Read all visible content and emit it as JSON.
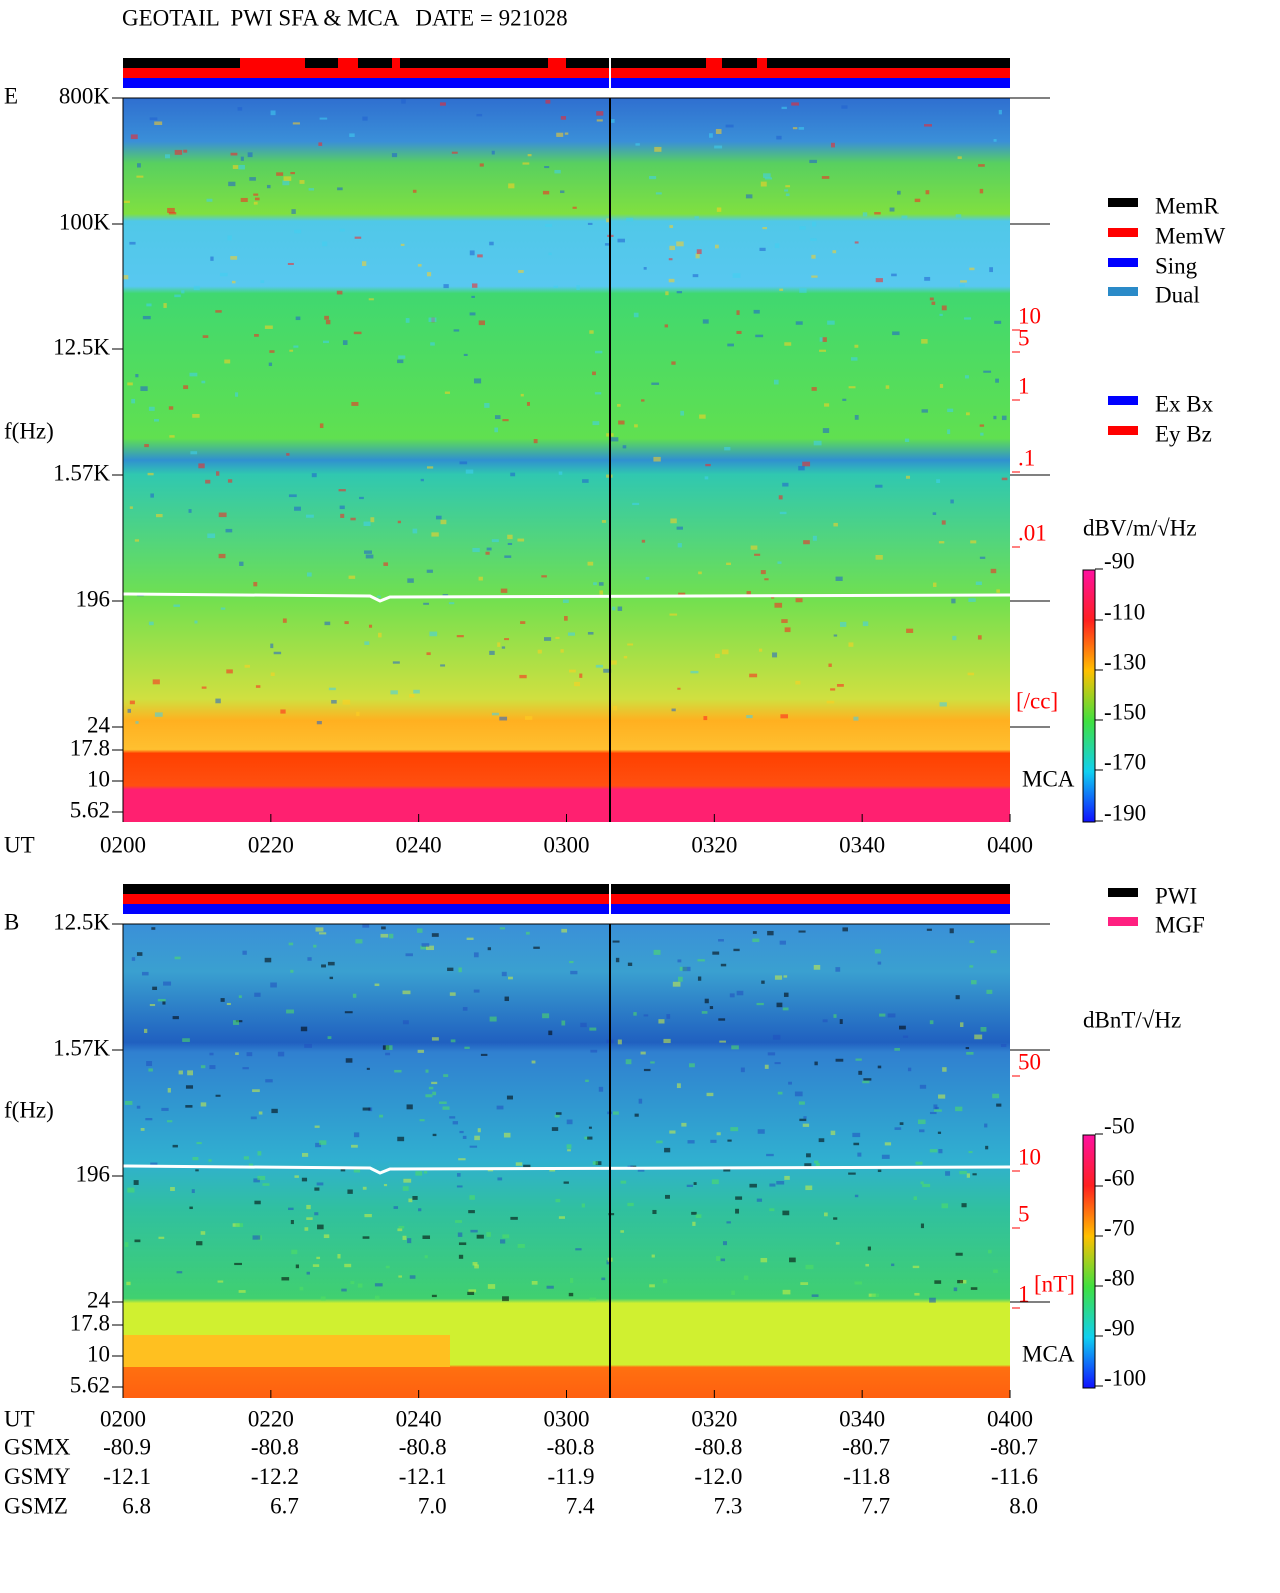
{
  "title": "GEOTAIL  PWI SFA & MCA   DATE = 921028",
  "panels": [
    {
      "label": "E",
      "freq_labels": [
        "800K",
        "100K",
        "12.5K",
        "1.57K",
        "196",
        "24",
        "17.8",
        "10",
        "5.62"
      ],
      "axis_label": "f(Hz)",
      "ut_label": "UT",
      "time_labels": [
        "0200",
        "0220",
        "0240",
        "0300",
        "0320",
        "0340",
        "0400"
      ],
      "right_scale": [
        "10",
        "5",
        "1",
        ".1",
        ".01"
      ],
      "right_unit": "[/cc]",
      "mca": "MCA",
      "unit": "dBV/m/√Hz",
      "colorbar": [
        "-90",
        "-110",
        "-130",
        "-150",
        "-170",
        "-190"
      ],
      "legend": [
        {
          "label": "MemR",
          "color": "#000000"
        },
        {
          "label": "MemW",
          "color": "#ff0000"
        },
        {
          "label": "Sing",
          "color": "#0000ff"
        },
        {
          "label": "Dual",
          "color": "#2a8ac8"
        },
        {
          "label": "Ex Bx",
          "color": "#0000ff"
        },
        {
          "label": "Ey Bz",
          "color": "#ff0000"
        }
      ]
    },
    {
      "label": "B",
      "freq_labels": [
        "12.5K",
        "1.57K",
        "196",
        "24",
        "17.8",
        "10",
        "5.62"
      ],
      "axis_label": "f(Hz)",
      "ut_label": "UT",
      "time_labels": [
        "0200",
        "0220",
        "0240",
        "0300",
        "0320",
        "0340",
        "0400"
      ],
      "right_scale": [
        "50",
        "10",
        "5",
        "1"
      ],
      "right_unit": "[nT]",
      "mca": "MCA",
      "unit": "dBnT/√Hz",
      "colorbar": [
        "-50",
        "-60",
        "-70",
        "-80",
        "-90",
        "-100"
      ],
      "legend": [
        {
          "label": "PWI",
          "color": "#000000"
        },
        {
          "label": "MGF",
          "color": "#ff2080"
        }
      ]
    }
  ],
  "orbit": [
    {
      "label": "GSMX",
      "values": [
        "-80.9",
        "-80.8",
        "-80.8",
        "-80.8",
        "-80.8",
        "-80.7",
        "-80.7"
      ]
    },
    {
      "label": "GSMY",
      "values": [
        "-12.1",
        "-12.2",
        "-12.1",
        "-11.9",
        "-12.0",
        "-11.8",
        "-11.6"
      ]
    },
    {
      "label": "GSMZ",
      "values": [
        "6.8",
        "6.7",
        "7.0",
        "7.4",
        "7.3",
        "7.7",
        "8.0"
      ]
    }
  ]
}
